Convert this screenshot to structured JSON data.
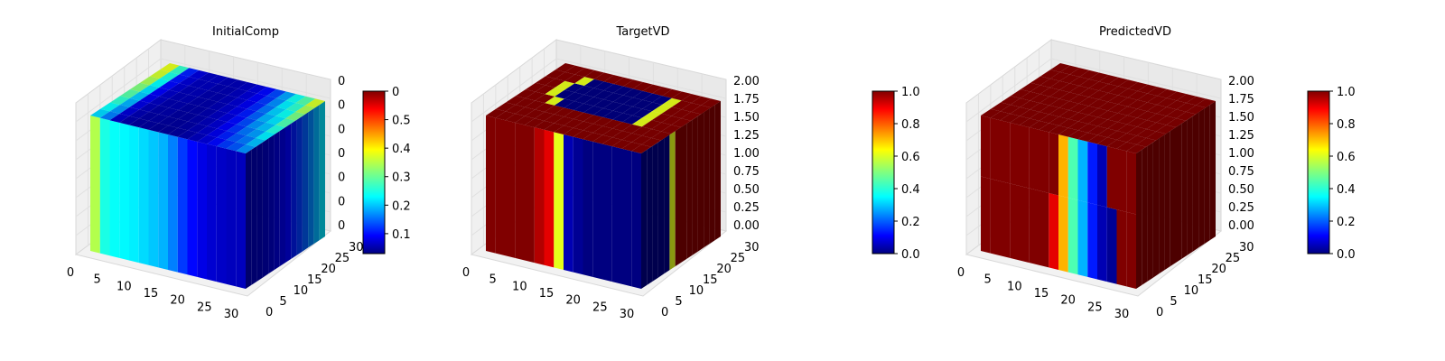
{
  "chart_data": [
    {
      "type": "voxel-3d",
      "title": "InitialComp",
      "x_ticks": [
        "0",
        "5",
        "10",
        "15",
        "20",
        "25",
        "30"
      ],
      "y_ticks": [
        "0",
        "5",
        "10",
        "15",
        "20",
        "25",
        "30"
      ],
      "z_ticks": [
        "0",
        "0",
        "0",
        "0",
        "0",
        "0",
        "0"
      ],
      "colorbar": {
        "cmap": "jet",
        "min": 0.03,
        "max": 0.6,
        "ticks": [
          "0.1",
          "0.2",
          "0.3",
          "0.4",
          "0.5",
          "0"
        ]
      },
      "front_face_values": [
        0.55,
        0.4,
        0.38,
        0.37,
        0.36,
        0.34,
        0.32,
        0.3,
        0.25,
        0.18,
        0.13,
        0.1,
        0.08,
        0.07,
        0.06,
        0.06
      ],
      "top_face_values": [
        0.4,
        0.25,
        0.12,
        0.07,
        0.05,
        0.05,
        0.04,
        0.04,
        0.05,
        0.07,
        0.1,
        0.15,
        0.22,
        0.3,
        0.35,
        0.45
      ]
    },
    {
      "type": "voxel-3d",
      "title": "TargetVD",
      "x_ticks": [
        "0",
        "5",
        "10",
        "15",
        "20",
        "25",
        "30"
      ],
      "y_ticks": [
        "0",
        "5",
        "10",
        "15",
        "20",
        "25",
        "30"
      ],
      "z_ticks": [
        "0.00",
        "0.25",
        "0.50",
        "0.75",
        "1.00",
        "1.25",
        "1.50",
        "1.75",
        "2.00"
      ],
      "colorbar": {
        "cmap": "jet",
        "min": 0.0,
        "max": 1.0,
        "ticks": [
          "0.0",
          "0.2",
          "0.4",
          "0.6",
          "0.8",
          "1.0"
        ]
      },
      "front_face_values": [
        1,
        1,
        1,
        1,
        1,
        0.95,
        0.9,
        0.6,
        0.05,
        0.02,
        0.0,
        0.0,
        0.0,
        0.0,
        0.0,
        0.0
      ]
    },
    {
      "type": "voxel-3d",
      "title": "PredictedVD",
      "x_ticks": [
        "0",
        "5",
        "10",
        "15",
        "20",
        "25",
        "30"
      ],
      "y_ticks": [
        "0",
        "5",
        "10",
        "15",
        "20",
        "25",
        "30"
      ],
      "z_ticks": [
        "0.00",
        "0.25",
        "0.50",
        "0.75",
        "1.00",
        "1.25",
        "1.50",
        "1.75",
        "2.00"
      ],
      "colorbar": {
        "cmap": "jet",
        "min": 0.0,
        "max": 1.0,
        "ticks": [
          "0.0",
          "0.2",
          "0.4",
          "0.6",
          "0.8",
          "1.0"
        ]
      },
      "front_face_values": [
        1,
        1,
        1,
        1,
        1,
        1,
        1,
        0.9,
        0.7,
        0.45,
        0.3,
        0.15,
        0.05,
        0.02,
        0.0,
        0.95
      ]
    }
  ]
}
